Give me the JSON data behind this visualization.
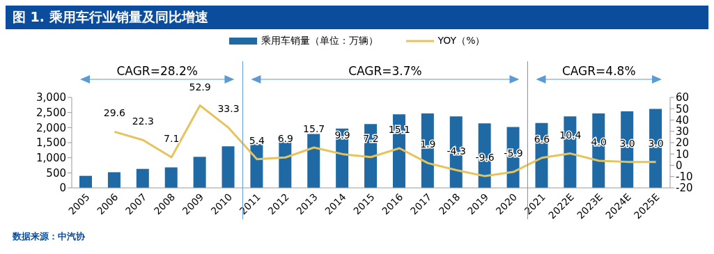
{
  "chart_data": {
    "type": "bar",
    "title": "图 1. 乘用车行业销量及同比增速",
    "categories": [
      "2005",
      "2006",
      "2007",
      "2008",
      "2009",
      "2010",
      "2011",
      "2012",
      "2013",
      "2014",
      "2015",
      "2016",
      "2017",
      "2018",
      "2019",
      "2020",
      "2021",
      "2022E",
      "2023E",
      "2024E",
      "2025E"
    ],
    "series": [
      {
        "name": "乘用车销量（单位：万辆）",
        "color": "#1f6aa5",
        "values": [
          400,
          520,
          630,
          680,
          1030,
          1380,
          1450,
          1550,
          1790,
          1970,
          2120,
          2440,
          2470,
          2370,
          2140,
          2020,
          2150,
          2370,
          2470,
          2540,
          2620
        ]
      },
      {
        "name": "YOY（%）",
        "type": "line",
        "axis": "y2",
        "color": "#e6c35c",
        "values": [
          null,
          29.6,
          22.3,
          7.1,
          52.9,
          33.3,
          5.4,
          6.9,
          15.7,
          9.9,
          7.2,
          15.1,
          1.9,
          -4.3,
          -9.6,
          -5.9,
          6.6,
          10.4,
          4.0,
          3.0,
          3.0
        ],
        "value_labels": [
          null,
          "29.6",
          "22.3",
          "7.1",
          "52.9",
          "33.3",
          "5.4",
          "6.9",
          "15.7",
          "9.9",
          "7.2",
          "15.1",
          "1.9",
          "-4.3",
          "-9.6",
          "-5.9",
          "6.6",
          "10.4",
          "4.0",
          "3.0",
          "3.0"
        ]
      }
    ],
    "ylim": [
      0,
      3000
    ],
    "yticks": [
      0,
      500,
      {
        "value": 1000,
        "label": "1,000"
      },
      {
        "value": 1500,
        "label": "1,500"
      },
      {
        "value": 2000,
        "label": "2,000"
      },
      {
        "value": 2500,
        "label": "2,500"
      },
      {
        "value": 3000,
        "label": "3,000"
      }
    ],
    "y2lim": [
      -20,
      60
    ],
    "y2ticks": [
      -20,
      -10,
      0,
      10,
      20,
      30,
      40,
      50,
      60
    ],
    "ref_lines": [
      {
        "axis": "x",
        "value": "2011",
        "color": "#5b9bd5"
      },
      {
        "axis": "x",
        "value": "2021",
        "color": "#5b9bd5"
      }
    ],
    "annotations": [
      "CAGR=28.2%",
      "CAGR=3.7%",
      "CAGR=4.8%",
      "数据来源：中汽协"
    ],
    "legend": "top",
    "marker": "none",
    "line_style": "solid"
  }
}
